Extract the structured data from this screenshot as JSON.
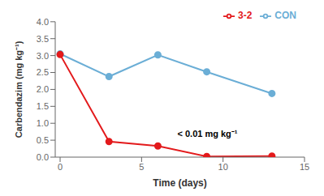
{
  "chart_data": {
    "type": "line",
    "x_label": "Time (days)",
    "y_label": "Carbendazim (mg kg⁻¹)",
    "series": [
      {
        "name": "CON",
        "color": "#6baed6",
        "marker": "circle",
        "x": [
          0,
          3,
          6,
          9,
          13
        ],
        "values": [
          3.05,
          2.38,
          3.02,
          2.52,
          1.88
        ]
      },
      {
        "name": "3-2",
        "color": "#e31a1c",
        "marker": "circle",
        "x": [
          0,
          3,
          6,
          9,
          13
        ],
        "values": [
          3.03,
          0.46,
          0.33,
          0.02,
          0.03
        ]
      }
    ],
    "xlim": [
      -0.3,
      15
    ],
    "ylim": [
      0,
      4.0
    ],
    "xticks": [
      0,
      5,
      10,
      15
    ],
    "yticks": [
      0.0,
      0.5,
      1.0,
      1.5,
      2.0,
      2.5,
      3.0,
      3.5,
      4.0
    ],
    "annotations": [
      {
        "text": "< 0.01 mg kg⁻¹",
        "x": 7.2,
        "y": 0.68
      }
    ],
    "legend": "upper right",
    "grid": false
  }
}
